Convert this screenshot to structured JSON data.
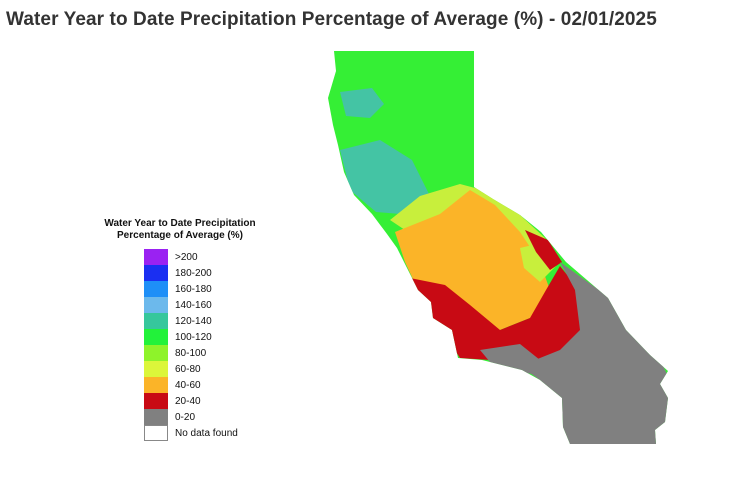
{
  "title": "Water Year to Date Precipitation Percentage of Average (%) - 02/01/2025",
  "map": {
    "region": "California",
    "colors": {
      "north": "#35ef35",
      "north_blue": "#44c4a4",
      "central": "#c8ef3c",
      "central_orange": "#fbb428",
      "south_red": "#c80a14",
      "southeast_gray": "#808080"
    }
  },
  "legend": {
    "title_line1": "Water Year to Date Precipitation",
    "title_line2": "Percentage of Average (%)",
    "items": [
      {
        "label": ">200",
        "color": "#9a22f2"
      },
      {
        "label": "180-200",
        "color": "#1a2ff2"
      },
      {
        "label": "160-180",
        "color": "#1e8ff7"
      },
      {
        "label": "140-160",
        "color": "#6cb9ec"
      },
      {
        "label": "120-140",
        "color": "#36c79c"
      },
      {
        "label": "100-120",
        "color": "#22f23a"
      },
      {
        "label": "80-100",
        "color": "#8ef32a"
      },
      {
        "label": "60-80",
        "color": "#dcf63a"
      },
      {
        "label": "40-60",
        "color": "#fbb428"
      },
      {
        "label": "20-40",
        "color": "#c80a14"
      },
      {
        "label": "0-20",
        "color": "#808080"
      },
      {
        "label": "No data found",
        "color": "#ffffff"
      }
    ]
  }
}
